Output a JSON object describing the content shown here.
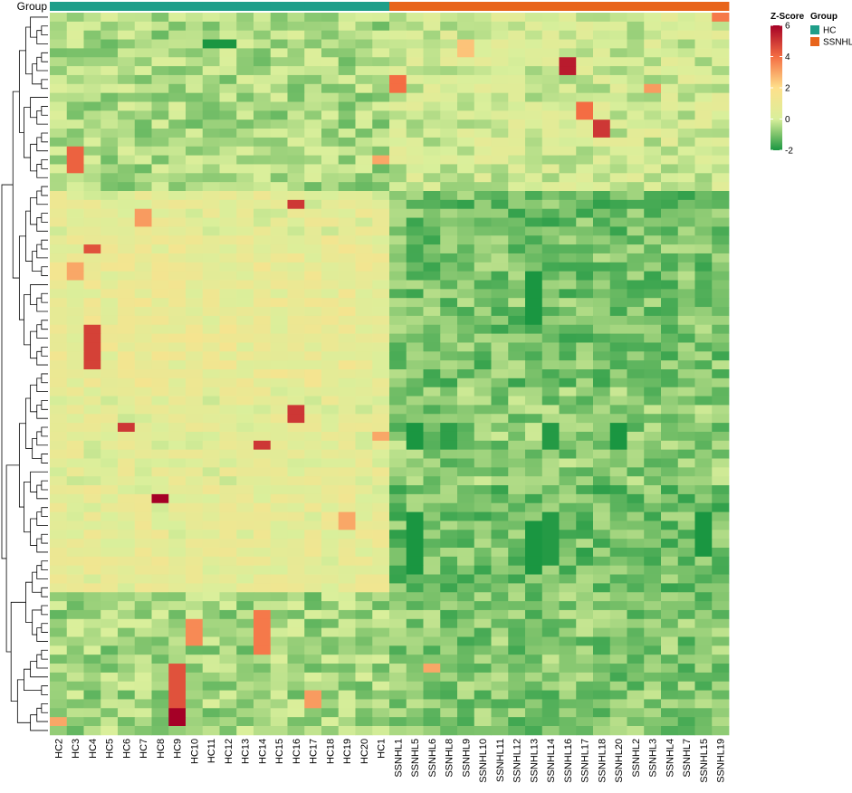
{
  "chart_data": {
    "type": "heatmap",
    "annotation_label": "Group",
    "groups": [
      {
        "name": "HC",
        "color": "#1f9e89"
      },
      {
        "name": "SSNHL",
        "color": "#e8641b"
      }
    ],
    "columns": [
      "HC2",
      "HC3",
      "HC4",
      "HC5",
      "HC6",
      "HC7",
      "HC8",
      "HC9",
      "HC10",
      "HC11",
      "HC12",
      "HC13",
      "HC14",
      "HC15",
      "HC16",
      "HC17",
      "HC18",
      "HC19",
      "HC20",
      "HC1",
      "SSNHL1",
      "SSNHL5",
      "SSNHL6",
      "SSNHL8",
      "SSNHL9",
      "SSNHL10",
      "SSNHL11",
      "SSNHL12",
      "SSNHL13",
      "SSNHL14",
      "SSNHL16",
      "SSNHL17",
      "SSNHL18",
      "SSNHL20",
      "SSNHL2",
      "SSNHL3",
      "SSNHL4",
      "SSNHL7",
      "SSNHL15",
      "SSNHL19"
    ],
    "column_groups": [
      "HC",
      "HC",
      "HC",
      "HC",
      "HC",
      "HC",
      "HC",
      "HC",
      "HC",
      "HC",
      "HC",
      "HC",
      "HC",
      "HC",
      "HC",
      "HC",
      "HC",
      "HC",
      "HC",
      "HC",
      "SSNHL",
      "SSNHL",
      "SSNHL",
      "SSNHL",
      "SSNHL",
      "SSNHL",
      "SSNHL",
      "SSNHL",
      "SSNHL",
      "SSNHL",
      "SSNHL",
      "SSNHL",
      "SSNHL",
      "SSNHL",
      "SSNHL",
      "SSNHL",
      "SSNHL",
      "SSNHL",
      "SSNHL",
      "SSNHL"
    ],
    "n_rows": 81,
    "rows_labeled": false,
    "row_dendrogram": true,
    "color_scale": {
      "title": "Z-Score",
      "min": -2,
      "max": 6,
      "ticks": [
        6,
        4,
        2,
        0,
        -2
      ],
      "stops": [
        {
          "value": -2,
          "color": "#1a9641"
        },
        {
          "value": -1,
          "color": "#7cc26b"
        },
        {
          "value": 0,
          "color": "#d9ef9b"
        },
        {
          "value": 2,
          "color": "#fee08b"
        },
        {
          "value": 4,
          "color": "#f46d43"
        },
        {
          "value": 6,
          "color": "#a50026"
        }
      ]
    },
    "row_blocks": [
      {
        "rows": [
          0,
          19
        ],
        "HC": -0.5,
        "SSNHL": 0.0
      },
      {
        "rows": [
          20,
          24
        ],
        "HC": 0.5,
        "SSNHL": -1.1
      },
      {
        "rows": [
          25,
          41
        ],
        "HC": 0.8,
        "SSNHL": -1.0
      },
      {
        "rows": [
          42,
          52
        ],
        "HC": 0.5,
        "SSNHL": -0.8
      },
      {
        "rows": [
          53,
          64
        ],
        "HC": 0.6,
        "SSNHL": -1.1
      },
      {
        "rows": [
          65,
          80
        ],
        "HC": -0.6,
        "SSNHL": -0.9
      }
    ],
    "highlights": [
      {
        "col": "SSNHL16",
        "rows": [
          5,
          6
        ],
        "value": 5.5
      },
      {
        "col": "SSNHL18",
        "rows": [
          12,
          13
        ],
        "value": 5.0
      },
      {
        "col": "SSNHL17",
        "rows": [
          10,
          11
        ],
        "value": 4.0
      },
      {
        "col": "SSNHL1",
        "rows": [
          7,
          8
        ],
        "value": 4.0
      },
      {
        "col": "SSNHL19",
        "rows": [
          0,
          0
        ],
        "value": 3.8
      },
      {
        "col": "SSNHL3",
        "rows": [
          8,
          8
        ],
        "value": 3.2
      },
      {
        "col": "SSNHL9",
        "rows": [
          3,
          4
        ],
        "value": 2.5
      },
      {
        "col": "HC3",
        "rows": [
          15,
          17
        ],
        "value": 4.2
      },
      {
        "col": "HC4",
        "rows": [
          26,
          26
        ],
        "value": 4.5
      },
      {
        "col": "HC4",
        "rows": [
          35,
          39
        ],
        "value": 4.8
      },
      {
        "col": "HC3",
        "rows": [
          28,
          29
        ],
        "value": 3.0
      },
      {
        "col": "HC7",
        "rows": [
          22,
          23
        ],
        "value": 3.2
      },
      {
        "col": "HC16",
        "rows": [
          21,
          21
        ],
        "value": 5.0
      },
      {
        "col": "HC16",
        "rows": [
          44,
          45
        ],
        "value": 5.0
      },
      {
        "col": "HC6",
        "rows": [
          46,
          46
        ],
        "value": 5.0
      },
      {
        "col": "HC14",
        "rows": [
          48,
          48
        ],
        "value": 5.0
      },
      {
        "col": "HC8",
        "rows": [
          54,
          54
        ],
        "value": 6.0
      },
      {
        "col": "HC9",
        "rows": [
          78,
          79
        ],
        "value": 6.0
      },
      {
        "col": "HC9",
        "rows": [
          73,
          77
        ],
        "value": 4.5
      },
      {
        "col": "HC14",
        "rows": [
          67,
          71
        ],
        "value": 3.8
      },
      {
        "col": "HC10",
        "rows": [
          68,
          70
        ],
        "value": 3.5
      },
      {
        "col": "HC19",
        "rows": [
          56,
          57
        ],
        "value": 3.0
      },
      {
        "col": "HC1",
        "rows": [
          16,
          16
        ],
        "value": 3.0
      },
      {
        "col": "HC1",
        "rows": [
          47,
          47
        ],
        "value": 3.0
      },
      {
        "col": "HC17",
        "rows": [
          76,
          77
        ],
        "value": 3.2
      },
      {
        "col": "HC2",
        "rows": [
          79,
          79
        ],
        "value": 3.0
      },
      {
        "col": "SSNHL6",
        "rows": [
          73,
          73
        ],
        "value": 3.0
      }
    ],
    "deep_green": [
      {
        "col": "SSNHL5",
        "rows": [
          56,
          62
        ],
        "value": -2.0
      },
      {
        "col": "SSNHL13",
        "rows": [
          57,
          62
        ],
        "value": -2.0
      },
      {
        "col": "SSNHL15",
        "rows": [
          56,
          60
        ],
        "value": -2.0
      },
      {
        "col": "SSNHL13",
        "rows": [
          29,
          34
        ],
        "value": -2.0
      },
      {
        "col": "SSNHL5",
        "rows": [
          46,
          48
        ],
        "value": -2.0
      },
      {
        "col": "SSNHL20",
        "rows": [
          46,
          48
        ],
        "value": -2.0
      },
      {
        "col": "SSNHL14",
        "rows": [
          46,
          48
        ],
        "value": -1.9
      },
      {
        "col": "SSNHL8",
        "rows": [
          46,
          48
        ],
        "value": -1.8
      },
      {
        "col": "SSNHL14",
        "rows": [
          56,
          61
        ],
        "value": -1.9
      },
      {
        "col": "HC11",
        "rows": [
          3,
          3
        ],
        "value": -2.0
      },
      {
        "col": "HC12",
        "rows": [
          3,
          3
        ],
        "value": -2.0
      }
    ]
  }
}
